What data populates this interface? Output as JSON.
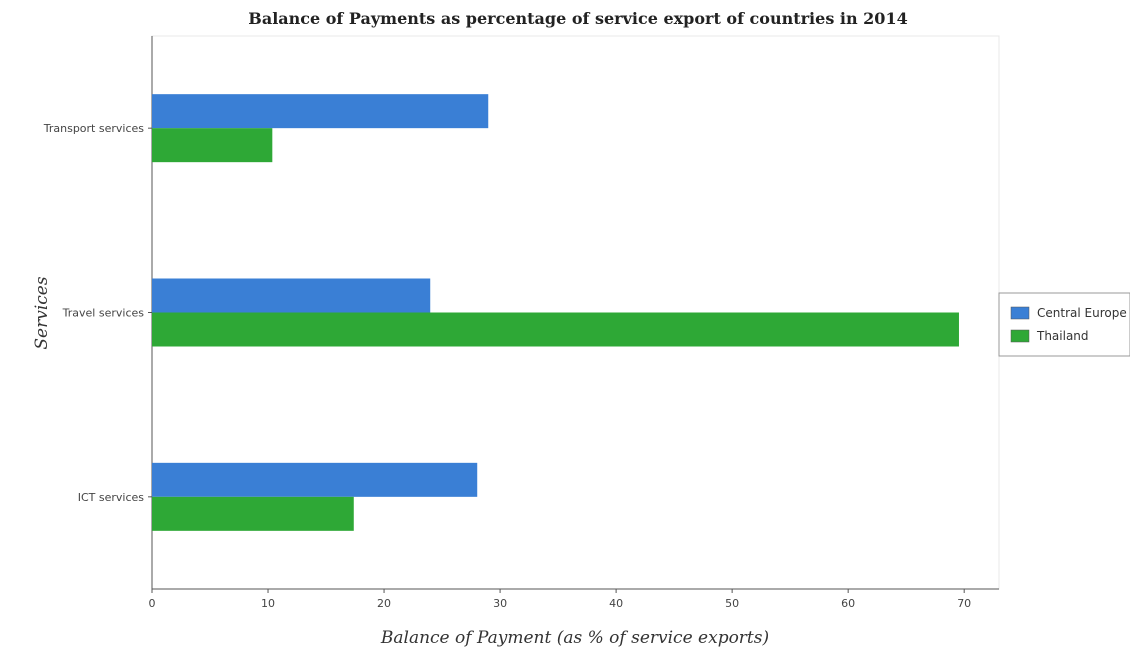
{
  "chart_data": {
    "type": "bar",
    "orientation": "horizontal",
    "title": "Balance of Payments as percentage of service export of countries in 2014",
    "xlabel": "Balance of Payment (as % of service exports)",
    "ylabel": "Services",
    "categories": [
      "Transport services",
      "Travel services",
      "ICT services"
    ],
    "series": [
      {
        "name": "Central Europe",
        "color": "#3a7fd5",
        "values": [
          28.98,
          23.98,
          28.03
        ]
      },
      {
        "name": "Thailand",
        "color": "#2ea836",
        "values": [
          10.37,
          69.55,
          17.39
        ]
      }
    ],
    "xlim": [
      0,
      73
    ],
    "xticks": [
      0,
      10,
      20,
      30,
      40,
      50,
      60,
      70
    ],
    "grid": false,
    "legend_position": "right"
  }
}
